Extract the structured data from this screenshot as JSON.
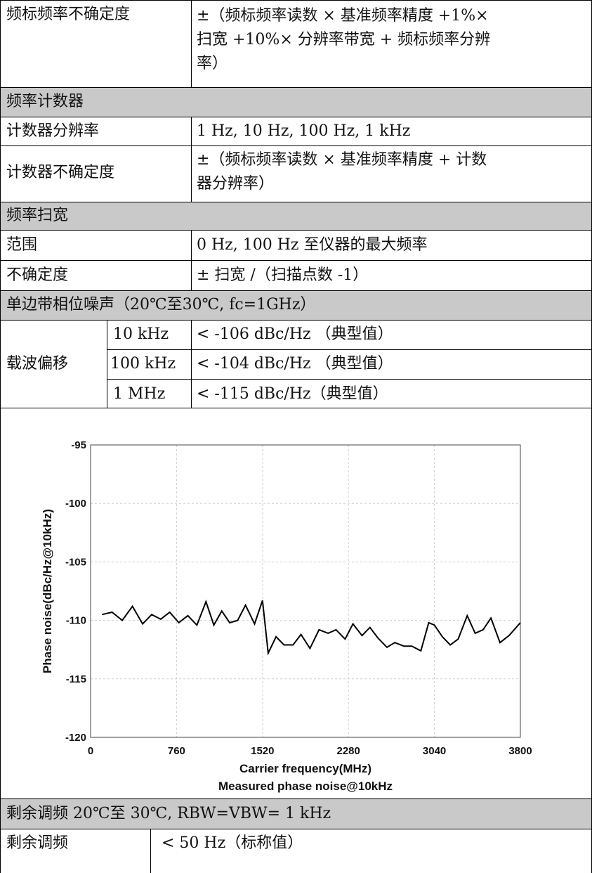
{
  "rows": {
    "r1": {
      "label": "频标频率不确定度",
      "line1": "±（频标频率读数 × 基准频率精度 +1%×",
      "line2": "扫宽 +10%× 分辨率带宽 + 频标频率分辨",
      "line3": "率）"
    },
    "r2": {
      "header": "频率计数器"
    },
    "r3": {
      "label": "计数器分辨率",
      "value": "1 Hz, 10 Hz, 100 Hz, 1 kHz"
    },
    "r4": {
      "label": "计数器不确定度",
      "line1": "±（频标频率读数 × 基准频率精度 + 计数",
      "line2": "器分辨率）"
    },
    "r5": {
      "header": "频率扫宽"
    },
    "r6": {
      "label": "范围",
      "value": "0 Hz, 100 Hz 至仪器的最大频率"
    },
    "r7": {
      "label": "不确定度",
      "value": "± 扫宽 /（扫描点数 -1）"
    },
    "r8": {
      "header": "单边带相位噪声（20℃至30℃, fc=1GHz）"
    },
    "r9": {
      "label": "载波偏移",
      "items": [
        {
          "offset": "10 kHz",
          "value": "< -106 dBc/Hz （典型值）"
        },
        {
          "offset": "100 kHz",
          "value": "< -104 dBc/Hz （典型值）"
        },
        {
          "offset": "1 MHz",
          "value": "< -115 dBc/Hz（典型值）"
        }
      ]
    },
    "r11": {
      "header": "剩余调频 20℃至 30℃, RBW=VBW= 1 kHz"
    },
    "r12": {
      "label": "剩余调频",
      "value": "< 50 Hz（标称值）"
    }
  },
  "chart_data": {
    "type": "line",
    "xlabel": "Carrier frequency(MHz)",
    "ylabel": "Phase noise(dBc/Hz@10kHz)",
    "caption": "Measured phase noise@10kHz",
    "xlim": [
      0,
      3800
    ],
    "ylim": [
      -120,
      -95
    ],
    "xticks": [
      "0",
      "760",
      "1520",
      "2280",
      "3040",
      "3800"
    ],
    "yticks": [
      "-95",
      "-100",
      "-105",
      "-110",
      "-115",
      "-120"
    ],
    "grid": true,
    "colors": {
      "line": "#000000",
      "grid": "#cfcfcf"
    },
    "series": [
      {
        "x": [
          100,
          190,
          280,
          370,
          460,
          540,
          620,
          700,
          780,
          860,
          940,
          1020,
          1090,
          1160,
          1230,
          1300,
          1370,
          1450,
          1520,
          1570,
          1640,
          1710,
          1790,
          1860,
          1940,
          2020,
          2100,
          2170,
          2250,
          2320,
          2400,
          2470,
          2540,
          2620,
          2690,
          2770,
          2840,
          2920,
          2990,
          3040,
          3110,
          3180,
          3250,
          3330,
          3400,
          3470,
          3540,
          3620,
          3700,
          3800
        ],
        "y": [
          -109.5,
          -109.3,
          -110.0,
          -108.8,
          -110.3,
          -109.5,
          -109.9,
          -109.3,
          -110.2,
          -109.6,
          -110.4,
          -108.4,
          -110.4,
          -109.2,
          -110.2,
          -110.0,
          -108.7,
          -110.3,
          -108.3,
          -112.8,
          -111.4,
          -112.1,
          -112.1,
          -111.2,
          -112.4,
          -110.8,
          -111.1,
          -110.8,
          -111.6,
          -110.3,
          -111.3,
          -110.6,
          -111.5,
          -112.3,
          -111.9,
          -112.2,
          -112.2,
          -112.6,
          -110.2,
          -110.4,
          -111.4,
          -112.1,
          -111.6,
          -109.6,
          -111.1,
          -110.8,
          -109.8,
          -111.9,
          -111.3,
          -110.2
        ]
      }
    ]
  }
}
